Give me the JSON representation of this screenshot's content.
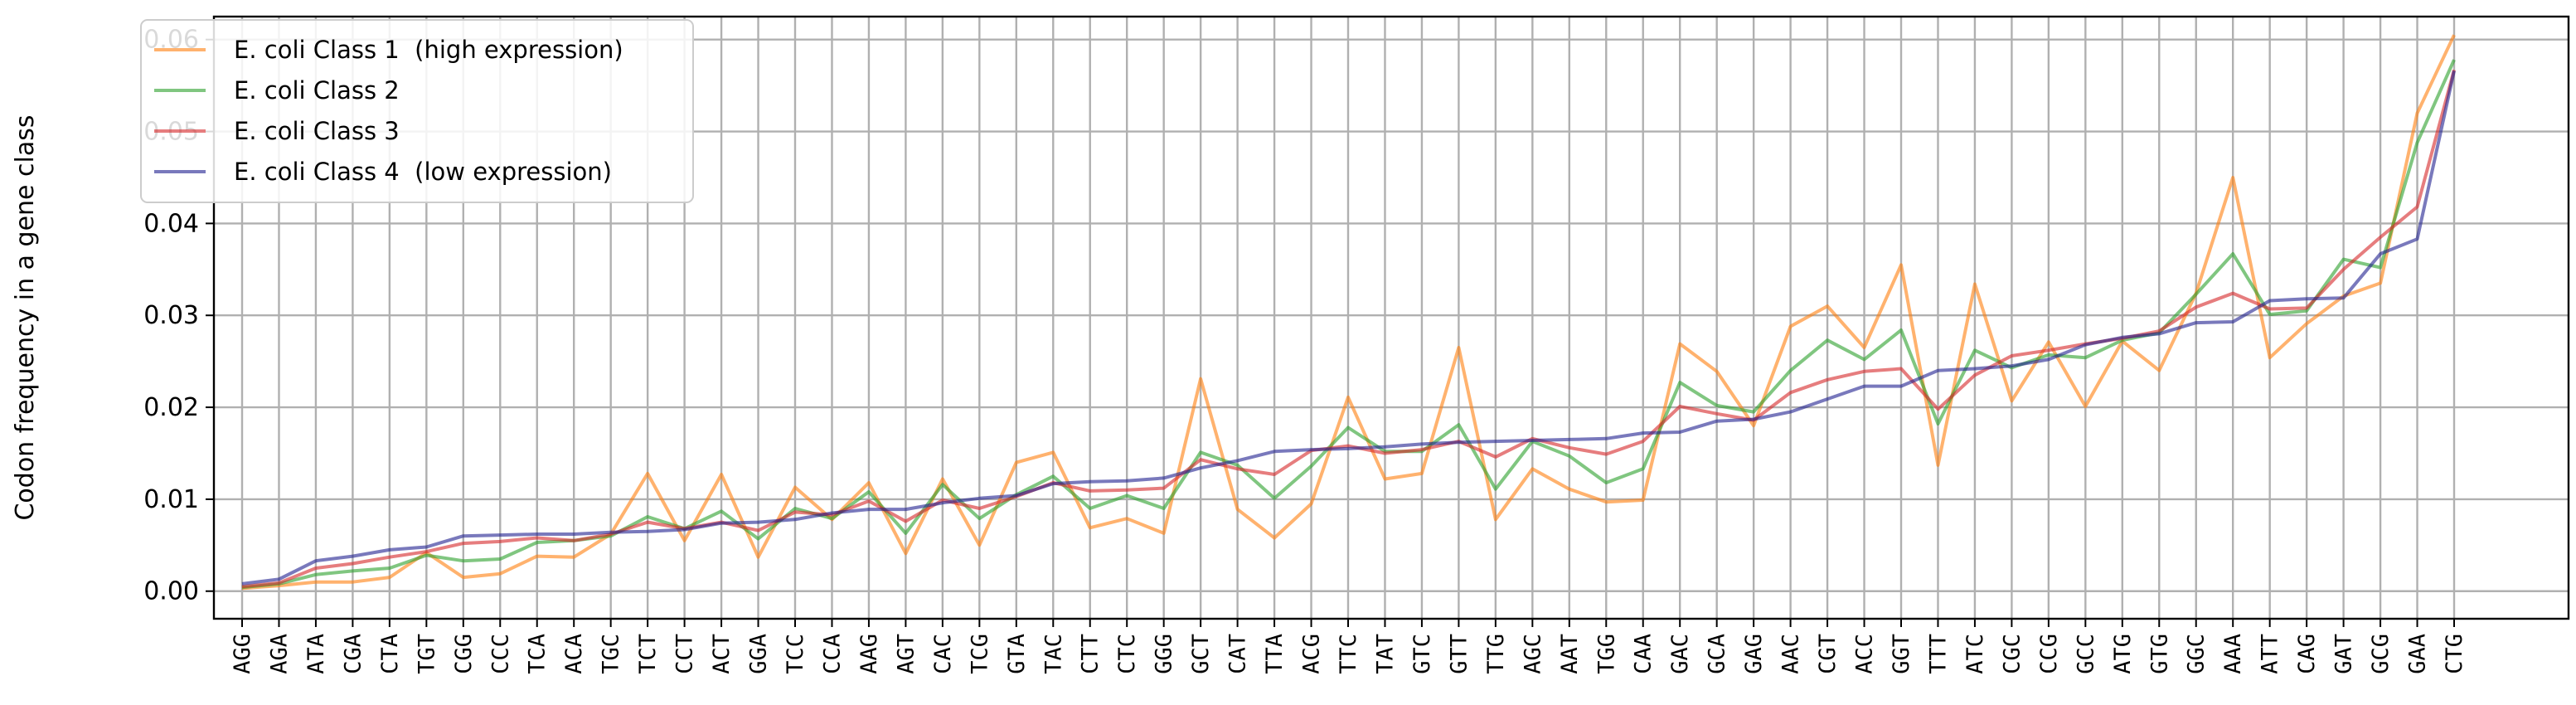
{
  "chart_data": {
    "type": "line",
    "title": "",
    "xlabel": "",
    "ylabel": "Codon frequency in a gene class",
    "ylim": [
      -0.003,
      0.0625
    ],
    "yticks": [
      0.0,
      0.01,
      0.02,
      0.03,
      0.04,
      0.05,
      0.06
    ],
    "ytick_labels": [
      "0.00",
      "0.01",
      "0.02",
      "0.03",
      "0.04",
      "0.05",
      "0.06"
    ],
    "grid": true,
    "legend_position": "top-left",
    "categories": [
      "AGG",
      "AGA",
      "ATA",
      "CGA",
      "CTA",
      "TGT",
      "CGG",
      "CCC",
      "TCA",
      "ACA",
      "TGC",
      "TCT",
      "CCT",
      "ACT",
      "GGA",
      "TCC",
      "CCA",
      "AAG",
      "AGT",
      "CAC",
      "TCG",
      "GTA",
      "TAC",
      "CTT",
      "CTC",
      "GGG",
      "GCT",
      "CAT",
      "TTA",
      "ACG",
      "TTC",
      "TAT",
      "GTC",
      "GTT",
      "TTG",
      "AGC",
      "AAT",
      "TGG",
      "CAA",
      "GAC",
      "GCA",
      "GAG",
      "AAC",
      "CGT",
      "ACC",
      "GGT",
      "TTT",
      "ATC",
      "CGC",
      "CCG",
      "GCC",
      "ATG",
      "GTG",
      "GGC",
      "AAA",
      "ATT",
      "CAG",
      "GAT",
      "GCG",
      "GAA",
      "CTG"
    ],
    "series": [
      {
        "name": "E. coli Class 1  (high expression)",
        "color": "#ff7f0e",
        "values": [
          0.0003,
          0.0006,
          0.001,
          0.001,
          0.0015,
          0.0042,
          0.0015,
          0.0019,
          0.0038,
          0.0037,
          0.0062,
          0.0128,
          0.0055,
          0.0127,
          0.0037,
          0.0113,
          0.0078,
          0.0118,
          0.0041,
          0.0122,
          0.005,
          0.014,
          0.0151,
          0.0069,
          0.0079,
          0.0063,
          0.0231,
          0.0089,
          0.0058,
          0.0095,
          0.0211,
          0.0122,
          0.0128,
          0.0265,
          0.0078,
          0.0133,
          0.0111,
          0.0097,
          0.0099,
          0.0269,
          0.0239,
          0.018,
          0.0288,
          0.031,
          0.0265,
          0.0355,
          0.0137,
          0.0334,
          0.0207,
          0.0271,
          0.0201,
          0.0272,
          0.024,
          0.0324,
          0.045,
          0.0254,
          0.0291,
          0.0321,
          0.0335,
          0.052,
          0.0605
        ]
      },
      {
        "name": "E. coli Class 2",
        "color": "#2ca02c",
        "values": [
          0.0004,
          0.0008,
          0.0018,
          0.0022,
          0.0025,
          0.0039,
          0.0033,
          0.0035,
          0.0053,
          0.0055,
          0.006,
          0.0081,
          0.0068,
          0.0087,
          0.0057,
          0.009,
          0.0079,
          0.0108,
          0.0063,
          0.0116,
          0.0079,
          0.0105,
          0.0125,
          0.009,
          0.0104,
          0.009,
          0.0151,
          0.0137,
          0.0101,
          0.0136,
          0.0178,
          0.0152,
          0.0152,
          0.0181,
          0.0111,
          0.0163,
          0.0147,
          0.0118,
          0.0133,
          0.0227,
          0.0202,
          0.0195,
          0.024,
          0.0273,
          0.0252,
          0.0284,
          0.0182,
          0.0262,
          0.0243,
          0.0257,
          0.0254,
          0.0273,
          0.0281,
          0.0323,
          0.0367,
          0.0301,
          0.0305,
          0.0361,
          0.0352,
          0.0488,
          0.0578
        ]
      },
      {
        "name": "E. coli Class 3",
        "color": "#d62728",
        "values": [
          0.0005,
          0.0009,
          0.0025,
          0.003,
          0.0037,
          0.0043,
          0.0052,
          0.0054,
          0.0058,
          0.0055,
          0.0062,
          0.0075,
          0.0068,
          0.0075,
          0.0066,
          0.0086,
          0.0083,
          0.0098,
          0.0076,
          0.0099,
          0.009,
          0.0103,
          0.0118,
          0.0109,
          0.011,
          0.0112,
          0.0143,
          0.0133,
          0.0127,
          0.0153,
          0.0158,
          0.015,
          0.0154,
          0.0163,
          0.0146,
          0.0166,
          0.0156,
          0.0149,
          0.0163,
          0.0201,
          0.0193,
          0.0186,
          0.0216,
          0.023,
          0.0239,
          0.0242,
          0.0198,
          0.0235,
          0.0256,
          0.0262,
          0.0269,
          0.0275,
          0.0283,
          0.0309,
          0.0324,
          0.0307,
          0.0308,
          0.035,
          0.0385,
          0.0418,
          0.0567
        ]
      },
      {
        "name": "E. coli Class 4  (low expression)",
        "color": "#1f1f8f",
        "values": [
          0.0008,
          0.0013,
          0.0033,
          0.0038,
          0.0045,
          0.0048,
          0.006,
          0.0061,
          0.0062,
          0.0062,
          0.0064,
          0.0065,
          0.0067,
          0.0074,
          0.0075,
          0.0078,
          0.0085,
          0.0089,
          0.0089,
          0.0096,
          0.0101,
          0.0104,
          0.0117,
          0.0119,
          0.012,
          0.0123,
          0.0134,
          0.0142,
          0.0152,
          0.0154,
          0.0155,
          0.0157,
          0.016,
          0.0162,
          0.0163,
          0.0164,
          0.0165,
          0.0166,
          0.0172,
          0.0173,
          0.0185,
          0.0187,
          0.0195,
          0.0209,
          0.0223,
          0.0223,
          0.024,
          0.0242,
          0.0245,
          0.0252,
          0.0268,
          0.0276,
          0.028,
          0.0292,
          0.0293,
          0.0316,
          0.0318,
          0.0319,
          0.0367,
          0.0383,
          0.0566
        ]
      }
    ]
  }
}
